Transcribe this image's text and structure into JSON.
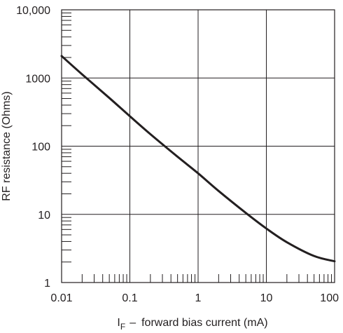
{
  "chart_data": {
    "type": "line",
    "title": "",
    "xlabel": {
      "symbol": "I",
      "subscript": "F",
      "dash": "–",
      "text": "forward bias current (mA)"
    },
    "ylabel": "RF resistance (Ohms)",
    "x_scale": "log",
    "y_scale": "log",
    "xlim": [
      0.01,
      100
    ],
    "ylim": [
      1,
      10000
    ],
    "x_ticks": [
      0.01,
      0.1,
      1,
      10,
      100
    ],
    "x_tick_labels": [
      "0.01",
      "0.1",
      "1",
      "10",
      "100"
    ],
    "y_ticks": [
      1,
      10,
      100,
      1000,
      10000
    ],
    "y_tick_labels": [
      "1",
      "10",
      "100",
      "1000",
      "10,000"
    ],
    "grid": true,
    "legend": false,
    "series": [
      {
        "x": [
          0.01,
          0.02,
          0.05,
          0.1,
          0.2,
          0.5,
          1,
          2,
          5,
          10,
          20,
          50,
          100
        ],
        "y": [
          2100,
          1130,
          510,
          275,
          150,
          70,
          40,
          22,
          10.5,
          6.2,
          3.9,
          2.45,
          2.05
        ]
      }
    ],
    "colors": {
      "line": "#231f20",
      "grid": "#231f20",
      "text": "#231f20"
    }
  }
}
